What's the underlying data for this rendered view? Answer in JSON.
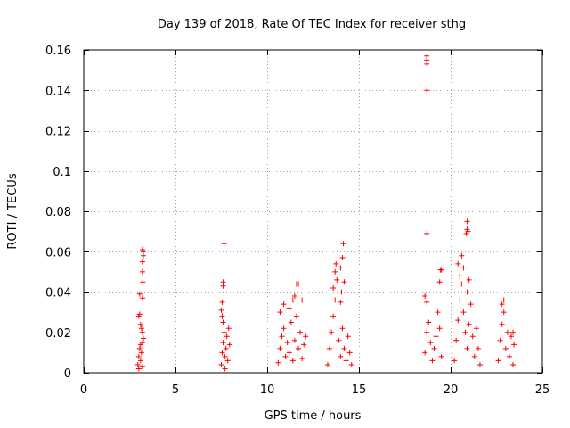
{
  "chart_data": {
    "type": "scatter",
    "title": "Day 139 of 2018, Rate Of TEC Index for receiver sthg",
    "xlabel": "GPS time / hours",
    "ylabel": "ROTI / TECUs",
    "xlim": [
      0,
      25
    ],
    "ylim": [
      0,
      0.16
    ],
    "xticks": [
      0,
      5,
      10,
      15,
      20,
      25
    ],
    "xtick_labels": [
      "0",
      "5",
      "10",
      "15",
      "20",
      "25"
    ],
    "yticks": [
      0,
      0.02,
      0.04,
      0.06,
      0.08,
      0.1,
      0.12,
      0.14,
      0.16
    ],
    "ytick_labels": [
      "0",
      "0.02",
      "0.04",
      "0.06",
      "0.08",
      "0.1",
      "0.12",
      "0.14",
      "0.16"
    ],
    "grid": true,
    "marker": "+",
    "marker_color": "#ff0000",
    "series": [
      {
        "name": "ROTI",
        "points": [
          [
            2.95,
            0.004
          ],
          [
            3.0,
            0.008
          ],
          [
            3.05,
            0.012
          ],
          [
            3.1,
            0.006
          ],
          [
            3.15,
            0.01
          ],
          [
            3.2,
            0.003
          ],
          [
            3.1,
            0.014
          ],
          [
            3.0,
            0.002
          ],
          [
            3.0,
            0.028
          ],
          [
            3.05,
            0.029
          ],
          [
            3.05,
            0.039
          ],
          [
            3.1,
            0.024
          ],
          [
            3.15,
            0.022
          ],
          [
            3.2,
            0.02
          ],
          [
            3.25,
            0.017
          ],
          [
            3.2,
            0.015
          ],
          [
            3.2,
            0.037
          ],
          [
            3.22,
            0.045
          ],
          [
            3.2,
            0.05
          ],
          [
            3.2,
            0.055
          ],
          [
            3.25,
            0.058
          ],
          [
            3.25,
            0.06
          ],
          [
            3.2,
            0.061
          ],
          [
            7.5,
            0.004
          ],
          [
            7.55,
            0.01
          ],
          [
            7.6,
            0.015
          ],
          [
            7.65,
            0.02
          ],
          [
            7.7,
            0.008
          ],
          [
            7.75,
            0.012
          ],
          [
            7.8,
            0.018
          ],
          [
            7.85,
            0.006
          ],
          [
            7.9,
            0.022
          ],
          [
            7.95,
            0.014
          ],
          [
            7.6,
            0.025
          ],
          [
            7.7,
            0.002
          ],
          [
            7.55,
            0.028
          ],
          [
            7.5,
            0.031
          ],
          [
            7.55,
            0.035
          ],
          [
            7.6,
            0.043
          ],
          [
            7.6,
            0.045
          ],
          [
            7.65,
            0.064
          ],
          [
            10.6,
            0.005
          ],
          [
            10.7,
            0.012
          ],
          [
            10.8,
            0.018
          ],
          [
            10.9,
            0.022
          ],
          [
            11.0,
            0.008
          ],
          [
            11.1,
            0.015
          ],
          [
            11.2,
            0.01
          ],
          [
            11.3,
            0.025
          ],
          [
            11.4,
            0.006
          ],
          [
            11.5,
            0.016
          ],
          [
            11.6,
            0.028
          ],
          [
            11.7,
            0.012
          ],
          [
            11.8,
            0.02
          ],
          [
            11.9,
            0.007
          ],
          [
            12.0,
            0.014
          ],
          [
            12.1,
            0.018
          ],
          [
            10.7,
            0.03
          ],
          [
            10.9,
            0.034
          ],
          [
            11.2,
            0.032
          ],
          [
            11.4,
            0.036
          ],
          [
            11.5,
            0.038
          ],
          [
            11.6,
            0.044
          ],
          [
            11.7,
            0.044
          ],
          [
            11.9,
            0.036
          ],
          [
            13.3,
            0.004
          ],
          [
            13.4,
            0.012
          ],
          [
            13.5,
            0.02
          ],
          [
            13.6,
            0.028
          ],
          [
            13.7,
            0.036
          ],
          [
            13.8,
            0.046
          ],
          [
            13.7,
            0.05
          ],
          [
            13.75,
            0.054
          ],
          [
            13.6,
            0.042
          ],
          [
            13.9,
            0.016
          ],
          [
            14.0,
            0.008
          ],
          [
            14.1,
            0.022
          ],
          [
            14.2,
            0.012
          ],
          [
            14.3,
            0.006
          ],
          [
            14.4,
            0.018
          ],
          [
            14.5,
            0.01
          ],
          [
            14.6,
            0.004
          ],
          [
            14.0,
            0.035
          ],
          [
            14.05,
            0.04
          ],
          [
            14.0,
            0.052
          ],
          [
            14.1,
            0.057
          ],
          [
            14.15,
            0.064
          ],
          [
            14.2,
            0.045
          ],
          [
            14.3,
            0.04
          ],
          [
            18.6,
            0.01
          ],
          [
            18.7,
            0.02
          ],
          [
            18.8,
            0.025
          ],
          [
            18.9,
            0.015
          ],
          [
            19.0,
            0.006
          ],
          [
            19.1,
            0.012
          ],
          [
            19.2,
            0.018
          ],
          [
            19.3,
            0.03
          ],
          [
            19.4,
            0.022
          ],
          [
            19.5,
            0.008
          ],
          [
            18.7,
            0.035
          ],
          [
            18.6,
            0.038
          ],
          [
            19.4,
            0.045
          ],
          [
            19.45,
            0.051
          ],
          [
            19.5,
            0.051
          ],
          [
            18.7,
            0.069
          ],
          [
            18.7,
            0.14
          ],
          [
            18.7,
            0.153
          ],
          [
            18.7,
            0.155
          ],
          [
            18.7,
            0.157
          ],
          [
            20.2,
            0.006
          ],
          [
            20.3,
            0.016
          ],
          [
            20.4,
            0.026
          ],
          [
            20.5,
            0.036
          ],
          [
            20.6,
            0.044
          ],
          [
            20.7,
            0.03
          ],
          [
            20.8,
            0.02
          ],
          [
            20.9,
            0.012
          ],
          [
            21.0,
            0.024
          ],
          [
            21.1,
            0.034
          ],
          [
            21.2,
            0.018
          ],
          [
            21.3,
            0.008
          ],
          [
            21.4,
            0.022
          ],
          [
            21.5,
            0.012
          ],
          [
            21.6,
            0.004
          ],
          [
            20.5,
            0.048
          ],
          [
            20.4,
            0.054
          ],
          [
            20.6,
            0.058
          ],
          [
            20.7,
            0.052
          ],
          [
            20.9,
            0.04
          ],
          [
            21.0,
            0.046
          ],
          [
            20.85,
            0.069
          ],
          [
            20.9,
            0.071
          ],
          [
            20.95,
            0.07
          ],
          [
            20.9,
            0.075
          ],
          [
            22.6,
            0.006
          ],
          [
            22.7,
            0.016
          ],
          [
            22.8,
            0.024
          ],
          [
            22.9,
            0.03
          ],
          [
            23.0,
            0.012
          ],
          [
            23.1,
            0.02
          ],
          [
            23.2,
            0.008
          ],
          [
            23.3,
            0.018
          ],
          [
            23.4,
            0.004
          ],
          [
            23.45,
            0.014
          ],
          [
            22.8,
            0.034
          ],
          [
            22.9,
            0.036
          ],
          [
            23.4,
            0.02
          ]
        ]
      }
    ]
  }
}
